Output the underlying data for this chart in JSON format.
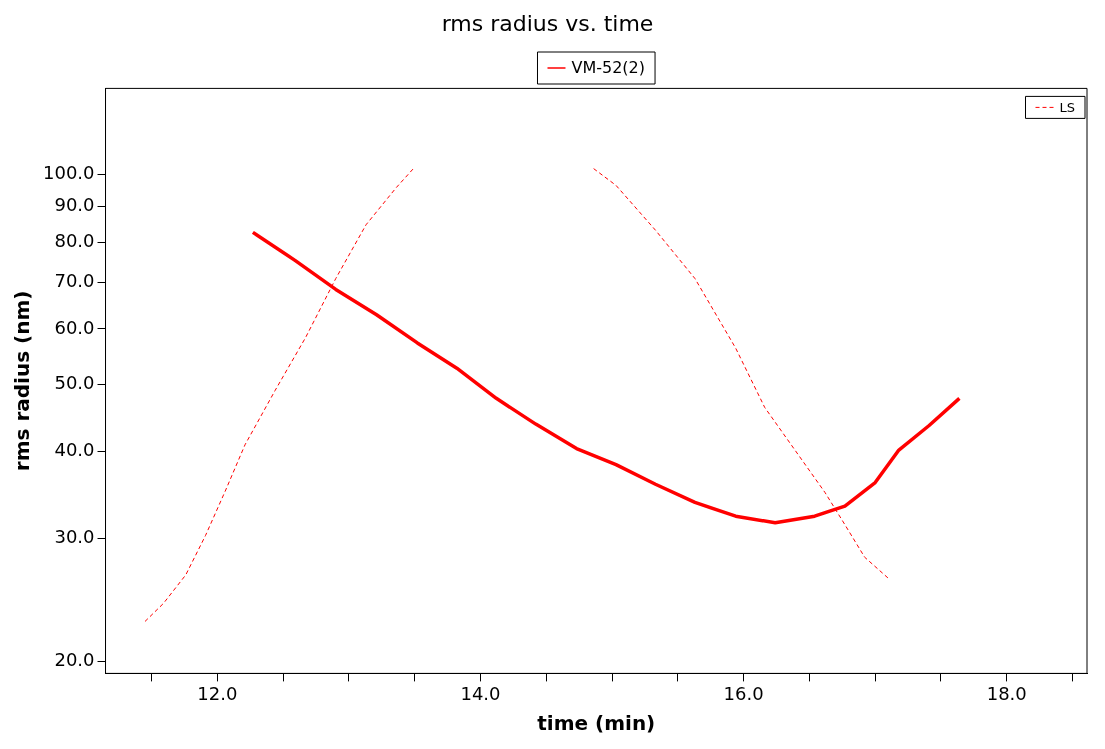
{
  "chart_data": {
    "type": "line",
    "title": "rms radius vs. time",
    "xlabel": "time (min)",
    "ylabel": "rms radius (nm)",
    "log": "y",
    "grid": false,
    "legend": "top",
    "marker": "none",
    "xlim": [
      11.15,
      18.61
    ],
    "xticks": [
      {
        "value": 11.5,
        "label": null
      },
      {
        "value": 12,
        "label": "12.0"
      },
      {
        "value": 12.5,
        "label": null
      },
      {
        "value": 13,
        "label": null
      },
      {
        "value": 13.5,
        "label": null
      },
      {
        "value": 14,
        "label": "14.0"
      },
      {
        "value": 14.5,
        "label": null
      },
      {
        "value": 15,
        "label": null
      },
      {
        "value": 15.5,
        "label": null
      },
      {
        "value": 16,
        "label": "16.0"
      },
      {
        "value": 16.5,
        "label": null
      },
      {
        "value": 17,
        "label": null
      },
      {
        "value": 17.5,
        "label": null
      },
      {
        "value": 18,
        "label": "18.0"
      },
      {
        "value": 18.5,
        "label": null
      }
    ],
    "ylim": [
      19.2,
      133
    ],
    "yticks": [
      {
        "value": 20,
        "label": "20.0"
      },
      {
        "value": 30,
        "label": "30.0"
      },
      {
        "value": 40,
        "label": "40.0"
      },
      {
        "value": 50,
        "label": "50.0"
      },
      {
        "value": 60,
        "label": "60.0"
      },
      {
        "value": 70,
        "label": "70.0"
      },
      {
        "value": 80,
        "label": "80.0"
      },
      {
        "value": 90,
        "label": "90.0"
      },
      {
        "value": 100,
        "label": "100.0"
      }
    ],
    "series": [
      {
        "name": "VM-52(2)",
        "color": "#ff0000",
        "line_style": "solid",
        "x": [
          12.27,
          12.59,
          12.9,
          13.21,
          13.52,
          13.82,
          14.12,
          14.42,
          14.73,
          15.03,
          15.33,
          15.63,
          15.94,
          16.24,
          16.54,
          16.77,
          17.0,
          17.18,
          17.41,
          17.64
        ],
        "values": [
          82.6,
          75.3,
          68.4,
          62.9,
          57.3,
          52.7,
          47.7,
          43.8,
          40.4,
          38.3,
          35.9,
          33.8,
          32.3,
          31.6,
          32.3,
          33.4,
          36.1,
          40.2,
          43.6,
          47.7
        ]
      },
      {
        "name": "LS",
        "color": "#ff0000",
        "line_style": "dashed",
        "x": [
          11.45,
          11.59,
          11.76,
          11.91,
          12.06,
          12.21,
          12.44,
          12.67,
          12.9,
          13.13,
          13.36,
          13.49,
          14.2,
          14.86,
          15.03,
          15.33,
          15.63,
          15.94,
          16.16,
          16.39,
          16.62,
          16.77,
          16.92,
          17.1
        ],
        "values": [
          22.8,
          24.2,
          26.6,
          30.3,
          35.1,
          40.9,
          49.0,
          58.3,
          70.9,
          84.7,
          95.8,
          102,
          null,
          102,
          96.5,
          83.2,
          70.9,
          56.3,
          46.3,
          40.2,
          34.9,
          31.4,
          28.2,
          26.3
        ]
      }
    ]
  }
}
